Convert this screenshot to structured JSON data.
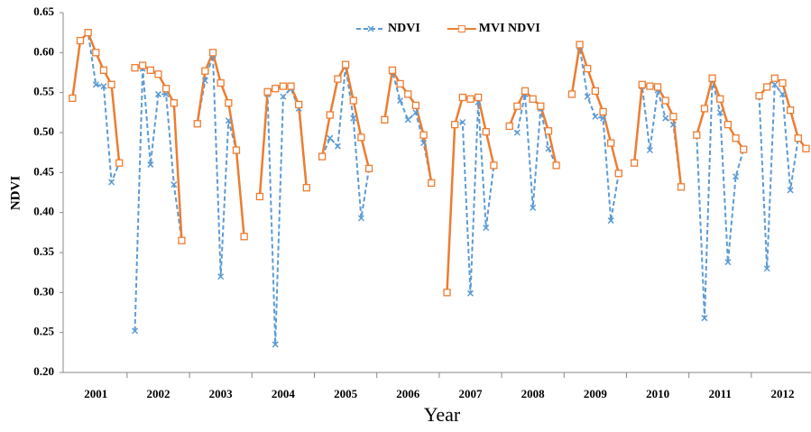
{
  "chart_data": {
    "type": "line",
    "x_label": "Year",
    "y_label": "NDVI",
    "categories": [
      null,
      null,
      null,
      "2001",
      null,
      null,
      null,
      null,
      null,
      null,
      null,
      "2002",
      null,
      null,
      null,
      null,
      null,
      null,
      null,
      "2003",
      null,
      null,
      null,
      null,
      null,
      null,
      null,
      "2004",
      null,
      null,
      null,
      null,
      null,
      null,
      null,
      "2005",
      null,
      null,
      null,
      null,
      null,
      null,
      null,
      "2006",
      null,
      null,
      null,
      null,
      null,
      null,
      null,
      "2007",
      null,
      null,
      null,
      null,
      null,
      null,
      null,
      "2008",
      null,
      null,
      null,
      null,
      null,
      null,
      null,
      "2009",
      null,
      null,
      null,
      null,
      null,
      null,
      null,
      "2010",
      null,
      null,
      null,
      null,
      null,
      null,
      null,
      "2011",
      null,
      null,
      null,
      null,
      null,
      null,
      null,
      "2012",
      null,
      null,
      null
    ],
    "series": [
      {
        "name": "NDVI",
        "color": "#5b9bd5",
        "values": [
          0.543,
          0.615,
          0.625,
          0.56,
          0.558,
          0.438,
          0.462,
          null,
          0.252,
          0.58,
          0.46,
          0.548,
          0.548,
          0.435,
          0.365,
          null,
          0.511,
          0.565,
          0.597,
          0.32,
          0.515,
          0.478,
          0.37,
          null,
          0.42,
          0.548,
          0.235,
          0.545,
          0.555,
          0.53,
          0.431,
          null,
          0.47,
          0.493,
          0.483,
          0.583,
          0.518,
          0.393,
          0.455,
          null,
          0.516,
          0.576,
          0.54,
          0.516,
          0.525,
          0.487,
          0.437,
          null,
          0.3,
          0.51,
          0.513,
          0.299,
          0.538,
          0.381,
          0.459,
          null,
          0.508,
          0.5,
          0.548,
          0.406,
          0.53,
          0.48,
          0.459,
          null,
          0.548,
          0.607,
          0.545,
          0.52,
          0.518,
          0.39,
          0.449,
          null,
          0.462,
          0.558,
          0.478,
          0.553,
          0.518,
          0.51,
          0.432,
          null,
          0.497,
          0.268,
          0.566,
          0.525,
          0.338,
          0.445,
          0.479,
          null,
          0.546,
          0.33,
          0.56,
          0.548,
          0.428,
          0.493,
          0.48
        ]
      },
      {
        "name": "MVI NDVI",
        "color": "#ed7d31",
        "values": [
          0.543,
          0.615,
          0.625,
          0.6,
          0.578,
          0.56,
          0.462,
          null,
          0.581,
          0.584,
          0.578,
          0.573,
          0.555,
          0.537,
          0.365,
          null,
          0.511,
          0.577,
          0.6,
          0.562,
          0.537,
          0.478,
          0.37,
          null,
          0.42,
          0.551,
          0.555,
          0.558,
          0.558,
          0.535,
          0.431,
          null,
          0.47,
          0.522,
          0.567,
          0.585,
          0.54,
          0.494,
          0.455,
          null,
          0.516,
          0.578,
          0.561,
          0.548,
          0.534,
          0.497,
          0.437,
          null,
          0.3,
          0.51,
          0.544,
          0.542,
          0.544,
          0.501,
          0.459,
          null,
          0.508,
          0.533,
          0.552,
          0.542,
          0.533,
          0.502,
          0.459,
          null,
          0.548,
          0.61,
          0.58,
          0.552,
          0.526,
          0.487,
          0.449,
          null,
          0.462,
          0.56,
          0.558,
          0.557,
          0.54,
          0.52,
          0.432,
          null,
          0.497,
          0.53,
          0.568,
          0.542,
          0.51,
          0.493,
          0.479,
          null,
          0.546,
          0.557,
          0.568,
          0.562,
          0.528,
          0.493,
          0.48
        ]
      }
    ],
    "ylim": [
      0.2,
      0.65
    ],
    "yticks": [
      {
        "value": 0.2,
        "label": "0.20"
      },
      0.25,
      {
        "value": 0.3,
        "label": "0.30"
      },
      0.35,
      {
        "value": 0.4,
        "label": "0.40"
      },
      0.45,
      {
        "value": 0.5,
        "label": "0.50"
      },
      0.55,
      {
        "value": 0.6,
        "label": "0.60"
      },
      0.65
    ],
    "legend": "top-center"
  }
}
